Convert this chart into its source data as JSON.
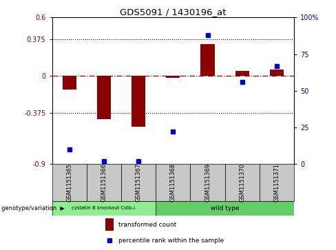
{
  "title": "GDS5091 / 1430196_at",
  "samples": [
    "GSM1151365",
    "GSM1151366",
    "GSM1151367",
    "GSM1151368",
    "GSM1151369",
    "GSM1151370",
    "GSM1151371"
  ],
  "red_values": [
    -0.14,
    -0.44,
    -0.52,
    -0.02,
    0.33,
    0.05,
    0.07
  ],
  "blue_pct": [
    10,
    2,
    2,
    22,
    88,
    56,
    67
  ],
  "ylim_left": [
    -0.9,
    0.6
  ],
  "ylim_right": [
    0,
    100
  ],
  "yticks_left": [
    -0.9,
    -0.375,
    0,
    0.375,
    0.6
  ],
  "ytick_labels_left": [
    "-0.9",
    "-0.375",
    "0",
    "0.375",
    "0.6"
  ],
  "yticks_right": [
    0,
    25,
    50,
    75,
    100
  ],
  "ytick_labels_right": [
    "0",
    "25",
    "50",
    "75",
    "100%"
  ],
  "hlines": [
    0.375,
    -0.375
  ],
  "group1_indices": [
    0,
    1,
    2
  ],
  "group2_indices": [
    3,
    4,
    5,
    6
  ],
  "group1_label": "cystatin B knockout Cstb-/-",
  "group2_label": "wild type",
  "group1_color": "#90EE90",
  "group2_color": "#66CC66",
  "bar_color": "#8B0000",
  "dot_color": "#0000CD",
  "col_bg_color": "#C8C8C8",
  "genotype_label": "genotype/variation",
  "legend_red": "transformed count",
  "legend_blue": "percentile rank within the sample"
}
